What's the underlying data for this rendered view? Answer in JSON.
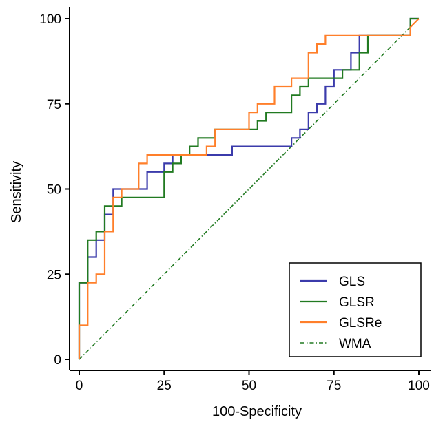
{
  "chart_data": {
    "type": "line",
    "xlabel": "100-Specificity",
    "ylabel": "Sensitivity",
    "xlim": [
      0,
      100
    ],
    "ylim": [
      0,
      100
    ],
    "xticks": [
      0,
      25,
      50,
      75,
      100
    ],
    "yticks": [
      0,
      25,
      50,
      75,
      100
    ],
    "grid": false,
    "legend_position": "bottom-right",
    "series": [
      {
        "name": "GLS",
        "color": "#3b3bab",
        "style": "step",
        "x": [
          0,
          0,
          2.5,
          2.5,
          5,
          5,
          7.5,
          7.5,
          10,
          10,
          15,
          15,
          20,
          20,
          25,
          25,
          27.5,
          27.5,
          45,
          45,
          62.5,
          62.5,
          65,
          65,
          67.5,
          67.5,
          70,
          70,
          72.5,
          72.5,
          75,
          75,
          80,
          80,
          82.5,
          82.5,
          97.5,
          97.5,
          100
        ],
        "y": [
          0,
          22.5,
          22.5,
          30,
          30,
          35,
          35,
          42.5,
          42.5,
          50,
          50,
          50,
          50,
          55,
          55,
          57.5,
          57.5,
          60,
          60,
          62.5,
          62.5,
          65,
          65,
          67.5,
          67.5,
          72.5,
          72.5,
          75,
          75,
          80,
          80,
          85,
          85,
          90,
          90,
          95,
          95,
          100,
          100
        ]
      },
      {
        "name": "GLSR",
        "color": "#217a21",
        "style": "step",
        "x": [
          0,
          0,
          2.5,
          2.5,
          5,
          5,
          7.5,
          7.5,
          12.5,
          12.5,
          15,
          15,
          25,
          25,
          27.5,
          27.5,
          30,
          30,
          32.5,
          32.5,
          35,
          35,
          37.5,
          37.5,
          40,
          40,
          52.5,
          52.5,
          55,
          55,
          62.5,
          62.5,
          65,
          65,
          67.5,
          67.5,
          77.5,
          77.5,
          82.5,
          82.5,
          85,
          85,
          97.5,
          97.5,
          100
        ],
        "y": [
          0,
          22.5,
          22.5,
          35,
          35,
          37.5,
          37.5,
          45,
          45,
          47.5,
          47.5,
          47.5,
          47.5,
          55,
          55,
          57.5,
          57.5,
          60,
          60,
          62.5,
          62.5,
          65,
          65,
          65,
          65,
          67.5,
          67.5,
          70,
          70,
          72.5,
          72.5,
          77.5,
          77.5,
          80,
          80,
          82.5,
          82.5,
          85,
          85,
          90,
          90,
          95,
          95,
          100,
          100
        ]
      },
      {
        "name": "GLSRe",
        "color": "#ff7f2a",
        "style": "step",
        "x": [
          0,
          0,
          2.5,
          2.5,
          5,
          5,
          7.5,
          7.5,
          10,
          10,
          12.5,
          12.5,
          17.5,
          17.5,
          20,
          20,
          37.5,
          37.5,
          40,
          40,
          50,
          50,
          52.5,
          52.5,
          57.5,
          57.5,
          62.5,
          62.5,
          67.5,
          67.5,
          70,
          70,
          72.5,
          72.5,
          77.5,
          77.5,
          97.5,
          97.5,
          100
        ],
        "y": [
          0,
          10,
          10,
          22.5,
          22.5,
          25,
          25,
          37.5,
          37.5,
          47.5,
          47.5,
          50,
          50,
          57.5,
          57.5,
          60,
          60,
          62.5,
          62.5,
          67.5,
          67.5,
          72.5,
          72.5,
          75,
          75,
          80,
          80,
          82.5,
          82.5,
          90,
          90,
          92.5,
          92.5,
          95,
          95,
          95,
          95,
          97.5,
          100
        ]
      },
      {
        "name": "WMA",
        "color": "#217a21",
        "style": "dash-dot",
        "x": [
          0,
          100
        ],
        "y": [
          0,
          100
        ]
      }
    ]
  }
}
